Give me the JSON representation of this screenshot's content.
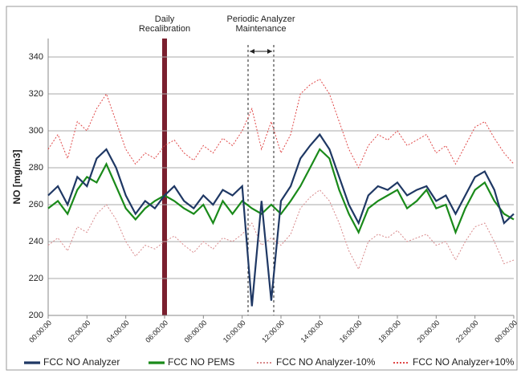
{
  "chart_data": {
    "type": "line",
    "ylabel": "NO [mg/m3]",
    "annotations": [
      {
        "lines": [
          "Daily",
          "Recalibration"
        ]
      },
      {
        "lines": [
          "Periodic  Analyzer",
          "Maintenance"
        ]
      }
    ],
    "categories": [
      "00:00:00",
      null,
      null,
      null,
      "02:00:00",
      null,
      null,
      null,
      "04:00:00",
      null,
      null,
      null,
      "06:00:00",
      null,
      null,
      null,
      "08:00:00",
      null,
      null,
      null,
      "10:00:00",
      null,
      null,
      null,
      "12:00:00",
      null,
      null,
      null,
      "14:00:00",
      null,
      null,
      null,
      "16:00:00",
      null,
      null,
      null,
      "18:00:00",
      null,
      null,
      null,
      "20:00:00",
      null,
      null,
      null,
      "22:00:00",
      null,
      null,
      null,
      "00:00:00"
    ],
    "series": [
      {
        "name": "FCC NO Analyzer",
        "color": "#1f3864",
        "values": [
          265,
          270,
          260,
          275,
          270,
          285,
          290,
          280,
          265,
          255,
          262,
          258,
          265,
          270,
          262,
          258,
          265,
          260,
          268,
          265,
          270,
          205,
          262,
          208,
          262,
          270,
          285,
          292,
          298,
          290,
          275,
          260,
          250,
          265,
          270,
          268,
          272,
          265,
          268,
          270,
          262,
          265,
          255,
          265,
          275,
          278,
          268,
          250,
          255
        ]
      },
      {
        "name": "FCC NO PEMS",
        "color": "#1a8a1a",
        "values": [
          258,
          262,
          255,
          268,
          275,
          272,
          282,
          270,
          258,
          252,
          258,
          262,
          265,
          262,
          258,
          255,
          260,
          250,
          262,
          255,
          262,
          258,
          255,
          260,
          255,
          262,
          270,
          280,
          290,
          285,
          268,
          255,
          245,
          258,
          262,
          265,
          268,
          258,
          262,
          268,
          258,
          260,
          245,
          258,
          268,
          272,
          262,
          255,
          252
        ]
      },
      {
        "name": "FCC NO Analyzer-10%",
        "color": "#d98a8c",
        "values": [
          238,
          242,
          235,
          248,
          245,
          255,
          260,
          252,
          240,
          232,
          238,
          236,
          240,
          243,
          238,
          234,
          240,
          236,
          242,
          240,
          244,
          250,
          238,
          242,
          238,
          244,
          258,
          264,
          268,
          262,
          250,
          235,
          225,
          240,
          244,
          242,
          246,
          240,
          242,
          244,
          238,
          240,
          230,
          240,
          248,
          250,
          240,
          228,
          230
        ]
      },
      {
        "name": "FCC NO Analyzer+10%",
        "color": "#e04848",
        "values": [
          290,
          298,
          285,
          305,
          300,
          312,
          320,
          305,
          290,
          282,
          288,
          285,
          292,
          295,
          288,
          284,
          292,
          288,
          296,
          292,
          300,
          312,
          290,
          305,
          288,
          298,
          320,
          325,
          328,
          320,
          305,
          290,
          280,
          292,
          298,
          295,
          300,
          292,
          295,
          298,
          288,
          292,
          282,
          292,
          302,
          305,
          296,
          288,
          282
        ]
      }
    ],
    "ylim": [
      200,
      350
    ],
    "yticks": [
      200,
      220,
      240,
      260,
      280,
      300,
      320,
      340
    ],
    "grid": true
  }
}
